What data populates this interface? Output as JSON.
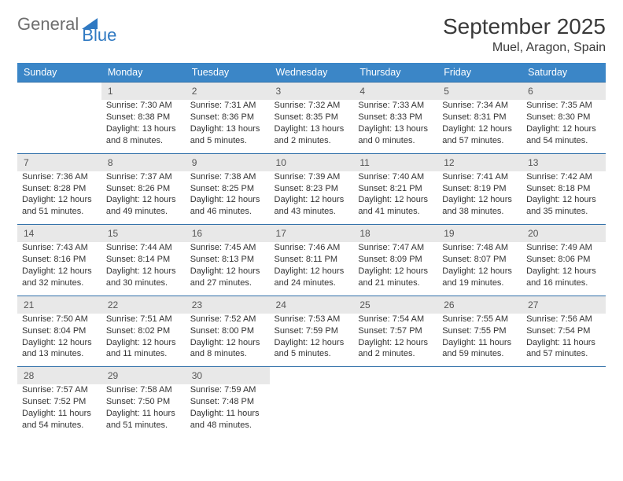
{
  "logo": {
    "general": "General",
    "blue": "Blue"
  },
  "title": "September 2025",
  "location": "Muel, Aragon, Spain",
  "colors": {
    "header_bg": "#3b86c7",
    "header_text": "#ffffff",
    "daynum_bg": "#e8e8e8",
    "row_border": "#2f6fa8",
    "logo_gray": "#6e6e6e",
    "logo_blue": "#2f79c2"
  },
  "weekdays": [
    "Sunday",
    "Monday",
    "Tuesday",
    "Wednesday",
    "Thursday",
    "Friday",
    "Saturday"
  ],
  "weeks": [
    [
      null,
      {
        "n": "1",
        "sr": "Sunrise: 7:30 AM",
        "ss": "Sunset: 8:38 PM",
        "dl": "Daylight: 13 hours and 8 minutes."
      },
      {
        "n": "2",
        "sr": "Sunrise: 7:31 AM",
        "ss": "Sunset: 8:36 PM",
        "dl": "Daylight: 13 hours and 5 minutes."
      },
      {
        "n": "3",
        "sr": "Sunrise: 7:32 AM",
        "ss": "Sunset: 8:35 PM",
        "dl": "Daylight: 13 hours and 2 minutes."
      },
      {
        "n": "4",
        "sr": "Sunrise: 7:33 AM",
        "ss": "Sunset: 8:33 PM",
        "dl": "Daylight: 13 hours and 0 minutes."
      },
      {
        "n": "5",
        "sr": "Sunrise: 7:34 AM",
        "ss": "Sunset: 8:31 PM",
        "dl": "Daylight: 12 hours and 57 minutes."
      },
      {
        "n": "6",
        "sr": "Sunrise: 7:35 AM",
        "ss": "Sunset: 8:30 PM",
        "dl": "Daylight: 12 hours and 54 minutes."
      }
    ],
    [
      {
        "n": "7",
        "sr": "Sunrise: 7:36 AM",
        "ss": "Sunset: 8:28 PM",
        "dl": "Daylight: 12 hours and 51 minutes."
      },
      {
        "n": "8",
        "sr": "Sunrise: 7:37 AM",
        "ss": "Sunset: 8:26 PM",
        "dl": "Daylight: 12 hours and 49 minutes."
      },
      {
        "n": "9",
        "sr": "Sunrise: 7:38 AM",
        "ss": "Sunset: 8:25 PM",
        "dl": "Daylight: 12 hours and 46 minutes."
      },
      {
        "n": "10",
        "sr": "Sunrise: 7:39 AM",
        "ss": "Sunset: 8:23 PM",
        "dl": "Daylight: 12 hours and 43 minutes."
      },
      {
        "n": "11",
        "sr": "Sunrise: 7:40 AM",
        "ss": "Sunset: 8:21 PM",
        "dl": "Daylight: 12 hours and 41 minutes."
      },
      {
        "n": "12",
        "sr": "Sunrise: 7:41 AM",
        "ss": "Sunset: 8:19 PM",
        "dl": "Daylight: 12 hours and 38 minutes."
      },
      {
        "n": "13",
        "sr": "Sunrise: 7:42 AM",
        "ss": "Sunset: 8:18 PM",
        "dl": "Daylight: 12 hours and 35 minutes."
      }
    ],
    [
      {
        "n": "14",
        "sr": "Sunrise: 7:43 AM",
        "ss": "Sunset: 8:16 PM",
        "dl": "Daylight: 12 hours and 32 minutes."
      },
      {
        "n": "15",
        "sr": "Sunrise: 7:44 AM",
        "ss": "Sunset: 8:14 PM",
        "dl": "Daylight: 12 hours and 30 minutes."
      },
      {
        "n": "16",
        "sr": "Sunrise: 7:45 AM",
        "ss": "Sunset: 8:13 PM",
        "dl": "Daylight: 12 hours and 27 minutes."
      },
      {
        "n": "17",
        "sr": "Sunrise: 7:46 AM",
        "ss": "Sunset: 8:11 PM",
        "dl": "Daylight: 12 hours and 24 minutes."
      },
      {
        "n": "18",
        "sr": "Sunrise: 7:47 AM",
        "ss": "Sunset: 8:09 PM",
        "dl": "Daylight: 12 hours and 21 minutes."
      },
      {
        "n": "19",
        "sr": "Sunrise: 7:48 AM",
        "ss": "Sunset: 8:07 PM",
        "dl": "Daylight: 12 hours and 19 minutes."
      },
      {
        "n": "20",
        "sr": "Sunrise: 7:49 AM",
        "ss": "Sunset: 8:06 PM",
        "dl": "Daylight: 12 hours and 16 minutes."
      }
    ],
    [
      {
        "n": "21",
        "sr": "Sunrise: 7:50 AM",
        "ss": "Sunset: 8:04 PM",
        "dl": "Daylight: 12 hours and 13 minutes."
      },
      {
        "n": "22",
        "sr": "Sunrise: 7:51 AM",
        "ss": "Sunset: 8:02 PM",
        "dl": "Daylight: 12 hours and 11 minutes."
      },
      {
        "n": "23",
        "sr": "Sunrise: 7:52 AM",
        "ss": "Sunset: 8:00 PM",
        "dl": "Daylight: 12 hours and 8 minutes."
      },
      {
        "n": "24",
        "sr": "Sunrise: 7:53 AM",
        "ss": "Sunset: 7:59 PM",
        "dl": "Daylight: 12 hours and 5 minutes."
      },
      {
        "n": "25",
        "sr": "Sunrise: 7:54 AM",
        "ss": "Sunset: 7:57 PM",
        "dl": "Daylight: 12 hours and 2 minutes."
      },
      {
        "n": "26",
        "sr": "Sunrise: 7:55 AM",
        "ss": "Sunset: 7:55 PM",
        "dl": "Daylight: 11 hours and 59 minutes."
      },
      {
        "n": "27",
        "sr": "Sunrise: 7:56 AM",
        "ss": "Sunset: 7:54 PM",
        "dl": "Daylight: 11 hours and 57 minutes."
      }
    ],
    [
      {
        "n": "28",
        "sr": "Sunrise: 7:57 AM",
        "ss": "Sunset: 7:52 PM",
        "dl": "Daylight: 11 hours and 54 minutes."
      },
      {
        "n": "29",
        "sr": "Sunrise: 7:58 AM",
        "ss": "Sunset: 7:50 PM",
        "dl": "Daylight: 11 hours and 51 minutes."
      },
      {
        "n": "30",
        "sr": "Sunrise: 7:59 AM",
        "ss": "Sunset: 7:48 PM",
        "dl": "Daylight: 11 hours and 48 minutes."
      },
      null,
      null,
      null,
      null
    ]
  ]
}
